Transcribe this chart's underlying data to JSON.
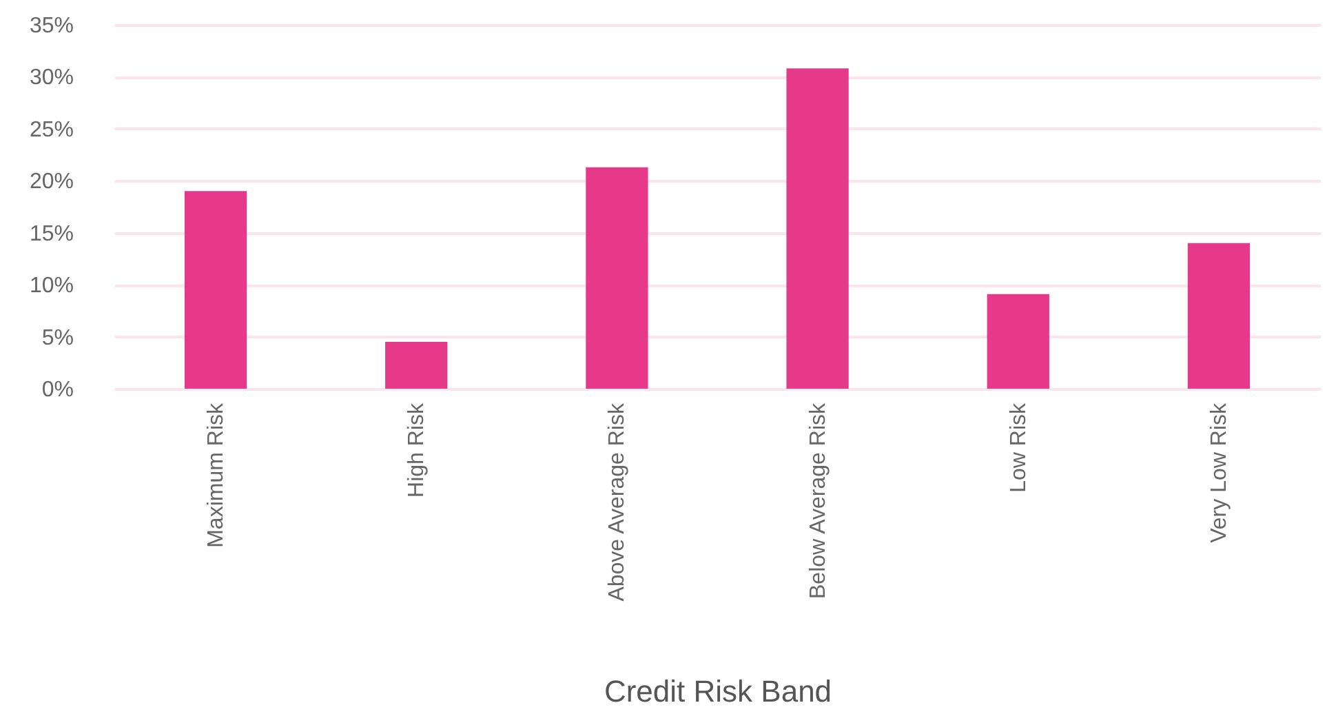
{
  "chart_data": {
    "type": "bar",
    "xlabel": "Credit Risk Band",
    "categories": [
      "Maximum Risk",
      "High Risk",
      "Above Average Risk",
      "Below Average Risk",
      "Low Risk",
      "Very Low Risk"
    ],
    "values": [
      19.0,
      4.5,
      21.3,
      30.8,
      9.1,
      14.0
    ],
    "color": "#e6398a",
    "ylim": [
      0,
      35
    ],
    "yticks": [
      {
        "value": 0,
        "label": "0%"
      },
      {
        "value": 5,
        "label": "5%"
      },
      {
        "value": 10,
        "label": "10%"
      },
      {
        "value": 15,
        "label": "15%"
      },
      {
        "value": 20,
        "label": "20%"
      },
      {
        "value": 25,
        "label": "25%"
      },
      {
        "value": 30,
        "label": "30%"
      },
      {
        "value": 35,
        "label": "35%"
      }
    ],
    "grid": "y"
  }
}
